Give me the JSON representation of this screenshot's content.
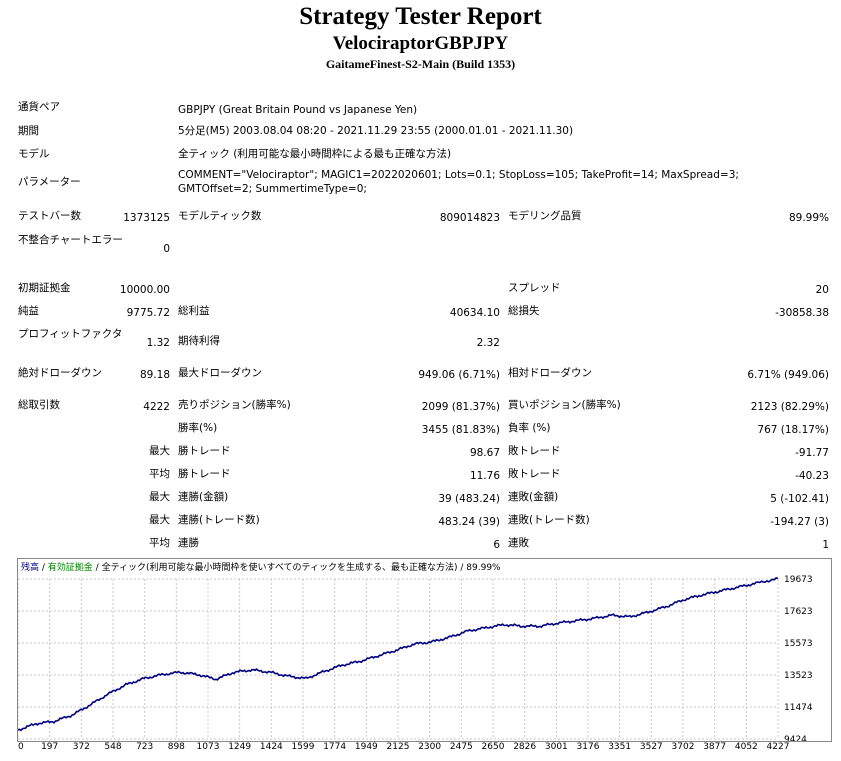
{
  "header": {
    "title": "Strategy Tester Report",
    "ea_name": "VelociraptorGBPJPY",
    "server": "GaitameFinest-S2-Main (Build 1353)"
  },
  "info": {
    "symbol_label": "通貨ペア",
    "symbol_value": "GBPJPY (Great Britain Pound vs Japanese Yen)",
    "period_label": "期間",
    "period_value": "5分足(M5) 2003.08.04 08:20 - 2021.11.29 23:55 (2000.01.01 - 2021.11.30)",
    "model_label": "モデル",
    "model_value": "全ティック (利用可能な最小時間枠による最も正確な方法)",
    "params_label": "パラメーター",
    "params_value": "COMMENT=\"Velociraptor\"; MAGIC1=2022020601; Lots=0.1; StopLoss=105; TakeProfit=14; MaxSpread=3; GMTOffset=2; SummertimeType=0;"
  },
  "stats": {
    "bars_label": "テストバー数",
    "bars_value": "1373125",
    "ticks_label": "モデルティック数",
    "ticks_value": "809014823",
    "quality_label": "モデリング品質",
    "quality_value": "89.99%",
    "mismatch_label": "不整合チャートエラー",
    "mismatch_value": "0",
    "deposit_label": "初期証拠金",
    "deposit_value": "10000.00",
    "spread_label": "スプレッド",
    "spread_value": "20",
    "net_label": "純益",
    "net_value": "9775.72",
    "gross_profit_label": "総利益",
    "gross_profit_value": "40634.10",
    "gross_loss_label": "総損失",
    "gross_loss_value": "-30858.38",
    "pf_label": "プロフィットファクタ",
    "pf_value": "1.32",
    "expected_label": "期待利得",
    "expected_value": "2.32",
    "abs_dd_label": "絶対ドローダウン",
    "abs_dd_value": "89.18",
    "max_dd_label": "最大ドローダウン",
    "max_dd_value": "949.06 (6.71%)",
    "rel_dd_label": "相対ドローダウン",
    "rel_dd_value": "6.71% (949.06)",
    "total_trades_label": "総取引数",
    "total_trades_value": "4222",
    "short_label": "売りポジション(勝率%)",
    "short_value": "2099 (81.37%)",
    "long_label": "買いポジション(勝率%)",
    "long_value": "2123 (82.29%)",
    "win_pct_label": "勝率(%)",
    "win_pct_value": "3455 (81.83%)",
    "loss_pct_label": "負率 (%)",
    "loss_pct_value": "767 (18.17%)",
    "max_label": "最大",
    "avg_label": "平均",
    "largest_win_label": "勝トレード",
    "largest_win_value": "98.67",
    "largest_loss_label": "敗トレード",
    "largest_loss_value": "-91.77",
    "avg_win_label": "勝トレード",
    "avg_win_value": "11.76",
    "avg_loss_label": "敗トレード",
    "avg_loss_value": "-40.23",
    "max_cons_wins_label": "連勝(金額)",
    "max_cons_wins_value": "39 (483.24)",
    "max_cons_losses_label": "連敗(金額)",
    "max_cons_losses_value": "5 (-102.41)",
    "max_cons_profit_label": "連勝(トレード数)",
    "max_cons_profit_value": "483.24 (39)",
    "max_cons_loss_label": "連敗(トレード数)",
    "max_cons_loss_value": "-194.27 (3)",
    "avg_cons_wins_label": "連勝",
    "avg_cons_wins_value": "6",
    "avg_cons_losses_label": "連敗",
    "avg_cons_losses_value": "1"
  },
  "chart_legend": {
    "balance": "残高",
    "sep1": " / ",
    "equity": "有効証拠金",
    "sep2": " / ",
    "model": "全ティック(利用可能な最小時間枠を使いすべてのティックを生成する、最も正確な方法)",
    "sep3": " / ",
    "quality": "89.99%",
    "balance_color": "#000080",
    "equity_color": "#008000"
  },
  "chart_data": {
    "type": "line",
    "x_ticks": [
      "0",
      "197",
      "372",
      "548",
      "723",
      "898",
      "1073",
      "1249",
      "1424",
      "1599",
      "1774",
      "1949",
      "2125",
      "2300",
      "2475",
      "2650",
      "2826",
      "3001",
      "3176",
      "3351",
      "3527",
      "3702",
      "3877",
      "4052",
      "4227"
    ],
    "y_ticks": [
      "19673",
      "17623",
      "15573",
      "13523",
      "11474",
      "9424"
    ],
    "ylim": [
      9424,
      19673
    ],
    "xlim": [
      0,
      4222
    ],
    "series": [
      {
        "color": "#000080",
        "x": [
          0,
          100,
          200,
          300,
          400,
          500,
          600,
          700,
          800,
          900,
          1000,
          1100,
          1200,
          1300,
          1400,
          1500,
          1600,
          1700,
          1800,
          1900,
          2000,
          2100,
          2200,
          2300,
          2400,
          2500,
          2600,
          2700,
          2800,
          2900,
          3000,
          3100,
          3200,
          3300,
          3400,
          3500,
          3600,
          3700,
          3800,
          3900,
          4000,
          4100,
          4222
        ],
        "y": [
          10000,
          10400,
          10550,
          10950,
          11600,
          12300,
          12900,
          13300,
          13550,
          13700,
          13550,
          13250,
          13700,
          13850,
          13700,
          13450,
          13300,
          13750,
          14150,
          14400,
          14750,
          15100,
          15500,
          15650,
          15950,
          16350,
          16550,
          16750,
          16650,
          16650,
          16850,
          17000,
          17150,
          17350,
          17250,
          17550,
          17900,
          18350,
          18650,
          18900,
          19150,
          19400,
          19700
        ]
      }
    ]
  }
}
